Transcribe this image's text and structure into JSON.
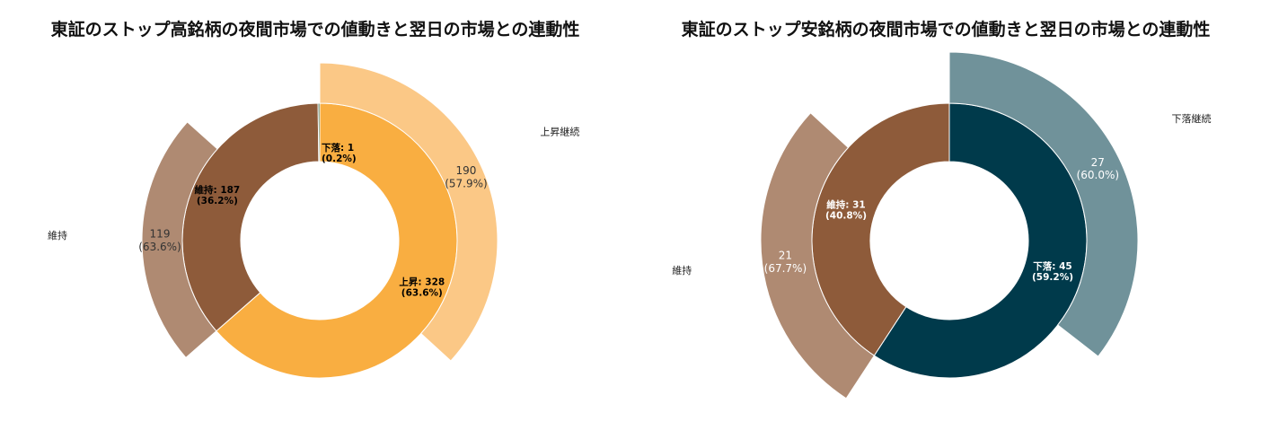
{
  "chart_data": [
    {
      "type": "sunburst",
      "title": "東証のストップ高銘柄の夜間市場での値動きと翌日の市場との連動性",
      "inner": [
        {
          "label": "上昇",
          "value": 328,
          "percent": "63.6%",
          "color": "#F9AE41"
        },
        {
          "label": "維持",
          "value": 187,
          "percent": "36.2%",
          "color": "#8E5B3A"
        },
        {
          "label": "下落",
          "value": 1,
          "percent": "0.2%",
          "color": "#2E5E3A"
        }
      ],
      "outer": [
        {
          "parent": "上昇",
          "label": "上昇継続",
          "value": 190,
          "percent": "57.9%",
          "color": "#FBC886"
        },
        {
          "parent": "維持",
          "label": "維持",
          "value": 119,
          "percent": "63.6%",
          "color": "#AF8A72"
        }
      ]
    },
    {
      "type": "sunburst",
      "title": "東証のストップ安銘柄の夜間市場での値動きと翌日の市場との連動性",
      "inner": [
        {
          "label": "下落",
          "value": 45,
          "percent": "59.2%",
          "color": "#003A4B"
        },
        {
          "label": "維持",
          "value": 31,
          "percent": "40.8%",
          "color": "#8E5B3A"
        }
      ],
      "outer": [
        {
          "parent": "下落",
          "label": "下落継続",
          "value": 27,
          "percent": "60.0%",
          "color": "#70929A"
        },
        {
          "parent": "維持",
          "label": "維持",
          "value": 21,
          "percent": "67.7%",
          "color": "#AF8A72"
        }
      ]
    }
  ]
}
